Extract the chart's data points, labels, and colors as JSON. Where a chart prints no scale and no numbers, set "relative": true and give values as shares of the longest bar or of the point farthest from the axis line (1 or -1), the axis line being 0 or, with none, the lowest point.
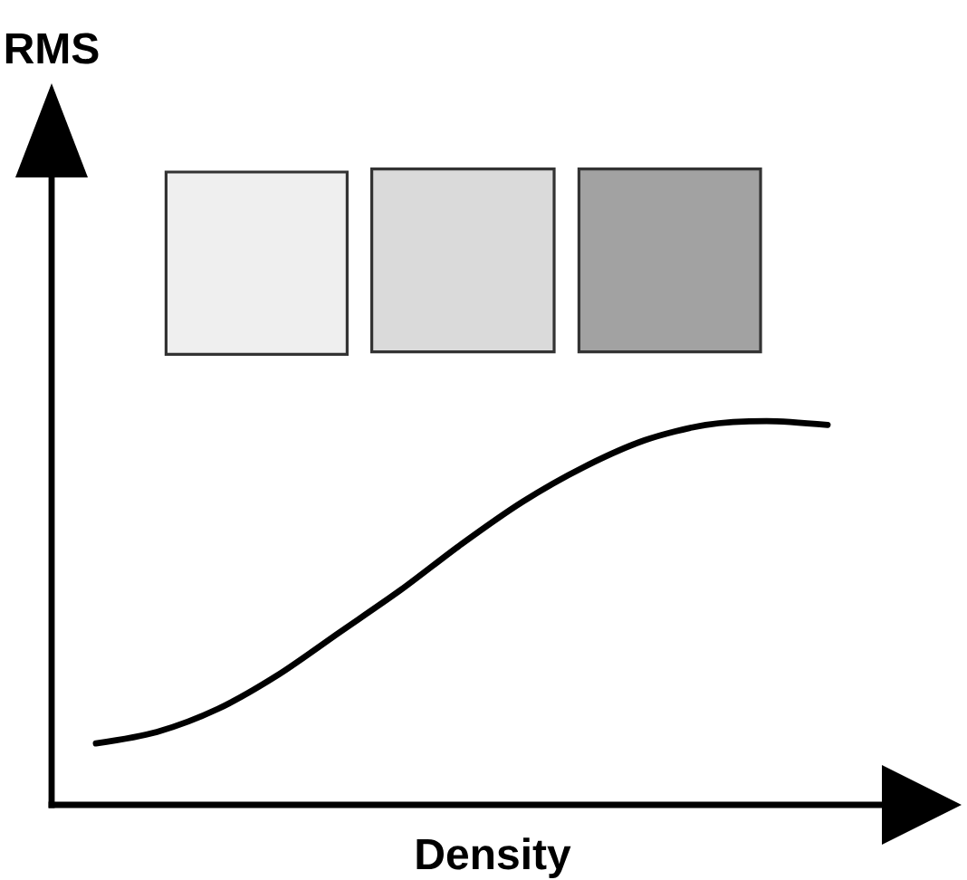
{
  "chart_data": {
    "type": "line",
    "xlabel": "Density",
    "annotations": [
      "RMS"
    ],
    "relative": true,
    "color": "#000000",
    "categories": [
      null,
      null,
      null,
      null,
      null,
      null,
      null,
      null,
      null,
      null,
      null,
      null,
      null
    ],
    "values": [
      0.16,
      0.19,
      0.25,
      0.34,
      0.45,
      0.56,
      0.68,
      0.79,
      0.88,
      0.95,
      0.99,
      1.0,
      0.99
    ]
  }
}
